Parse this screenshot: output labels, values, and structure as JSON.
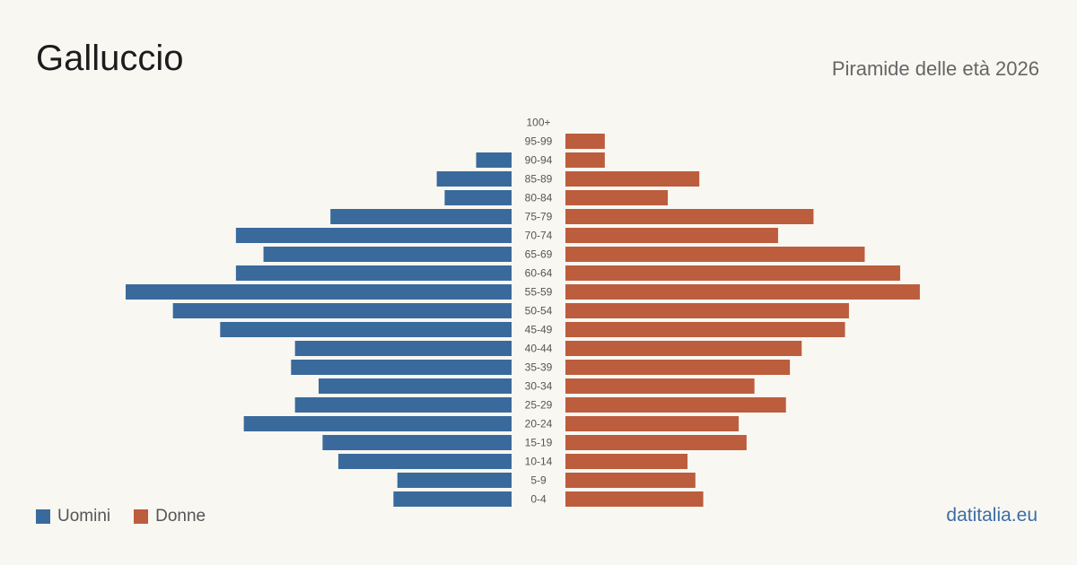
{
  "title": "Galluccio",
  "subtitle": "Piramide delle età 2026",
  "source": "datitalia.eu",
  "colors": {
    "men": "#3a6a9c",
    "women": "#bc5d3d",
    "background": "#f9f7f2"
  },
  "legend": {
    "men": "Uomini",
    "women": "Donne"
  },
  "chart_data": {
    "type": "bar",
    "orientation": "horizontal-pyramid",
    "categories": [
      "100+",
      "95-99",
      "90-94",
      "85-89",
      "80-84",
      "75-79",
      "70-74",
      "65-69",
      "60-64",
      "55-59",
      "50-54",
      "45-49",
      "40-44",
      "35-39",
      "30-34",
      "25-29",
      "20-24",
      "15-19",
      "10-14",
      "5-9",
      "0-4"
    ],
    "series": [
      {
        "name": "Uomini",
        "values": [
          0,
          0,
          9,
          19,
          17,
          46,
          70,
          63,
          70,
          98,
          86,
          74,
          55,
          56,
          49,
          55,
          68,
          48,
          44,
          29,
          30
        ]
      },
      {
        "name": "Donne",
        "values": [
          0,
          10,
          10,
          34,
          26,
          63,
          54,
          76,
          85,
          90,
          72,
          71,
          60,
          57,
          48,
          56,
          44,
          46,
          31,
          33,
          35
        ]
      }
    ],
    "xlim": [
      0,
      98
    ],
    "grid": false,
    "legend_position": "bottom-left"
  }
}
